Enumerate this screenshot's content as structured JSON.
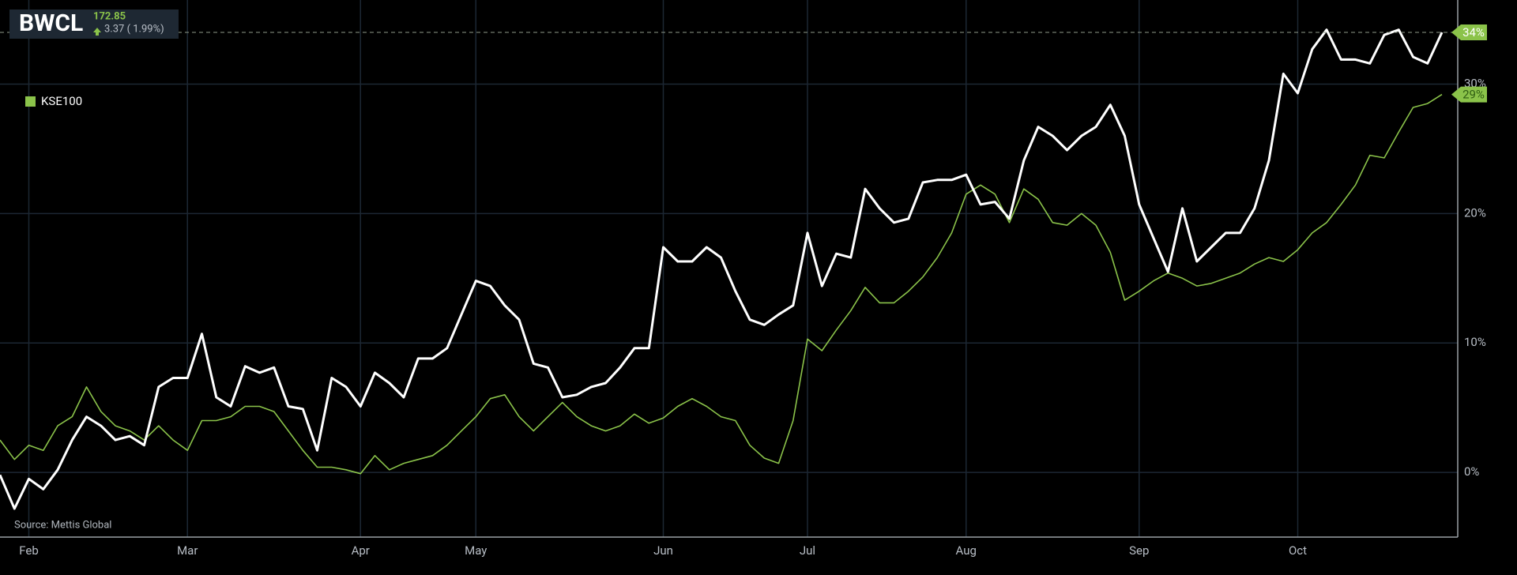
{
  "chart_data": {
    "type": "line",
    "price": 172.85,
    "change": "3.37 ( 1.99%)",
    "source": "Source: Mettis Global",
    "categories": [
      null,
      null,
      "Feb",
      null,
      null,
      null,
      null,
      null,
      null,
      null,
      null,
      null,
      null,
      "Mar",
      null,
      null,
      null,
      null,
      null,
      null,
      null,
      null,
      null,
      null,
      null,
      "Apr",
      null,
      null,
      null,
      null,
      null,
      null,
      null,
      "May",
      null,
      null,
      null,
      null,
      null,
      null,
      null,
      null,
      null,
      null,
      null,
      null,
      "Jun",
      null,
      null,
      null,
      null,
      null,
      null,
      null,
      null,
      null,
      "Jul",
      null,
      null,
      null,
      null,
      null,
      null,
      null,
      null,
      null,
      null,
      "Aug",
      null,
      null,
      null,
      null,
      null,
      null,
      null,
      null,
      null,
      null,
      null,
      "Sep",
      null,
      null,
      null,
      null,
      null,
      null,
      null,
      null,
      null,
      null,
      "Oct",
      null,
      null,
      null,
      null,
      null,
      null,
      null,
      null,
      null,
      null
    ],
    "series": [
      {
        "name": "BWCL",
        "color": "#ffffff",
        "end_label": "34%",
        "values": [
          -0.2,
          -2.8,
          -0.5,
          -1.3,
          0.2,
          2.5,
          4.3,
          3.6,
          2.5,
          2.8,
          2.1,
          6.6,
          7.3,
          7.3,
          10.7,
          5.8,
          5.1,
          8.2,
          7.7,
          8.1,
          5.1,
          4.9,
          1.7,
          7.3,
          6.6,
          5.1,
          7.7,
          6.9,
          5.8,
          8.8,
          8.8,
          9.6,
          12.2,
          14.8,
          14.4,
          12.9,
          11.8,
          8.4,
          8.1,
          5.8,
          6.0,
          6.6,
          6.9,
          8.1,
          9.6,
          9.6,
          17.4,
          16.3,
          16.3,
          17.4,
          16.6,
          14.0,
          11.8,
          11.4,
          12.2,
          12.9,
          18.5,
          14.4,
          16.9,
          16.6,
          21.9,
          20.4,
          19.3,
          19.6,
          22.4,
          22.6,
          22.6,
          23.0,
          20.7,
          20.9,
          19.6,
          24.1,
          26.7,
          26.0,
          24.9,
          26.0,
          26.7,
          28.4,
          26.0,
          20.7,
          18.1,
          15.5,
          20.4,
          16.3,
          17.4,
          18.5,
          18.5,
          20.4,
          24.1,
          30.8,
          29.3,
          32.7,
          34.2,
          31.9,
          31.9,
          31.6,
          33.8,
          34.2,
          32.1,
          31.6,
          34.0
        ]
      },
      {
        "name": "KSE100",
        "color": "#8bc34a",
        "end_label": "29%",
        "values": [
          2.5,
          1.0,
          2.1,
          1.7,
          3.6,
          4.3,
          6.6,
          4.7,
          3.6,
          3.2,
          2.5,
          3.6,
          2.5,
          1.7,
          4.0,
          4.0,
          4.3,
          5.1,
          5.1,
          4.7,
          3.2,
          1.7,
          0.4,
          0.4,
          0.2,
          -0.1,
          1.3,
          0.2,
          0.7,
          1.0,
          1.3,
          2.1,
          3.2,
          4.3,
          5.7,
          6.0,
          4.3,
          3.2,
          4.3,
          5.4,
          4.3,
          3.6,
          3.2,
          3.6,
          4.5,
          3.8,
          4.2,
          5.1,
          5.7,
          5.1,
          4.3,
          4.0,
          2.1,
          1.1,
          0.7,
          4.0,
          10.3,
          9.4,
          11.0,
          12.5,
          14.3,
          13.1,
          13.1,
          14.0,
          15.1,
          16.6,
          18.5,
          21.5,
          22.2,
          21.5,
          19.3,
          21.9,
          21.1,
          19.3,
          19.1,
          20.0,
          19.1,
          17.0,
          13.3,
          14.0,
          14.8,
          15.4,
          15.0,
          14.4,
          14.6,
          15.0,
          15.4,
          16.1,
          16.6,
          16.3,
          17.2,
          18.5,
          19.3,
          20.7,
          22.2,
          24.5,
          24.3,
          26.3,
          28.2,
          28.5,
          29.2
        ]
      }
    ],
    "ylim": [
      -5,
      36.5
    ],
    "yticks": [
      {
        "value": 0,
        "label": "0%"
      },
      {
        "value": 10,
        "label": "10%"
      },
      {
        "value": 20,
        "label": "20%"
      },
      {
        "value": 30,
        "label": "30%"
      }
    ],
    "grid": true
  }
}
